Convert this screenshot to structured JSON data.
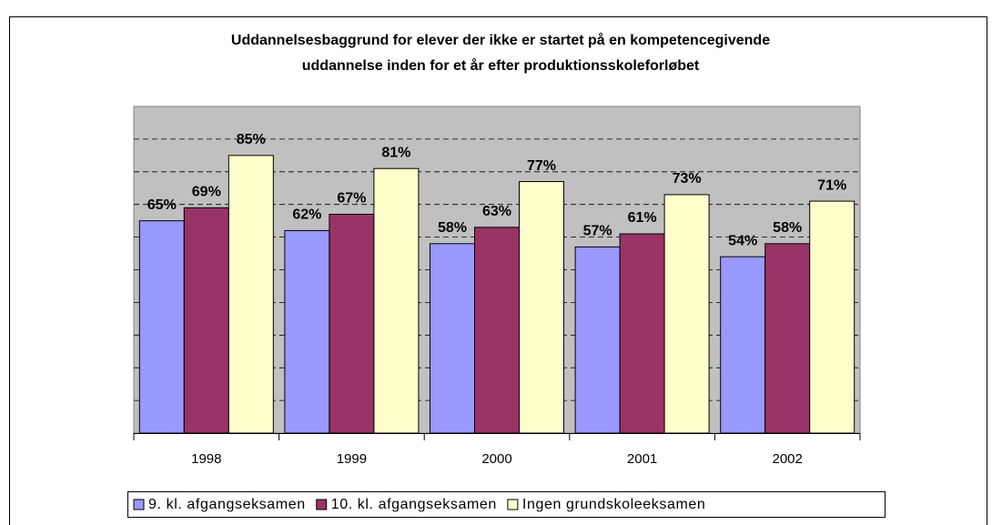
{
  "chart_data": {
    "type": "bar",
    "title": [
      "Uddannelsesbaggrund for elever der ikke er startet på en kompetencegivende",
      "uddannelse inden for et år efter produktionsskoleforløbet"
    ],
    "categories": [
      "1998",
      "1999",
      "2000",
      "2001",
      "2002"
    ],
    "series": [
      {
        "name": "9. kl. afgangseksamen",
        "color": "#9999ff",
        "values": [
          65,
          62,
          58,
          57,
          54
        ],
        "value_labels": [
          "65%",
          "62%",
          "58%",
          "57%",
          "54%"
        ]
      },
      {
        "name": "10. kl. afgangseksamen",
        "color": "#993366",
        "values": [
          69,
          67,
          63,
          61,
          58
        ],
        "value_labels": [
          "69%",
          "67%",
          "63%",
          "61%",
          "58%"
        ]
      },
      {
        "name": "Ingen grundskoleeksamen",
        "color": "#ffffcc",
        "values": [
          85,
          81,
          77,
          73,
          71
        ],
        "value_labels": [
          "85%",
          "81%",
          "77%",
          "73%",
          "71%"
        ]
      }
    ],
    "ylim": [
      0,
      100
    ],
    "yticks": [
      0,
      10,
      20,
      30,
      40,
      50,
      60,
      70,
      80,
      90,
      100
    ],
    "grid": true,
    "plot_background": "#c0c0c0",
    "legend": "bottom"
  }
}
